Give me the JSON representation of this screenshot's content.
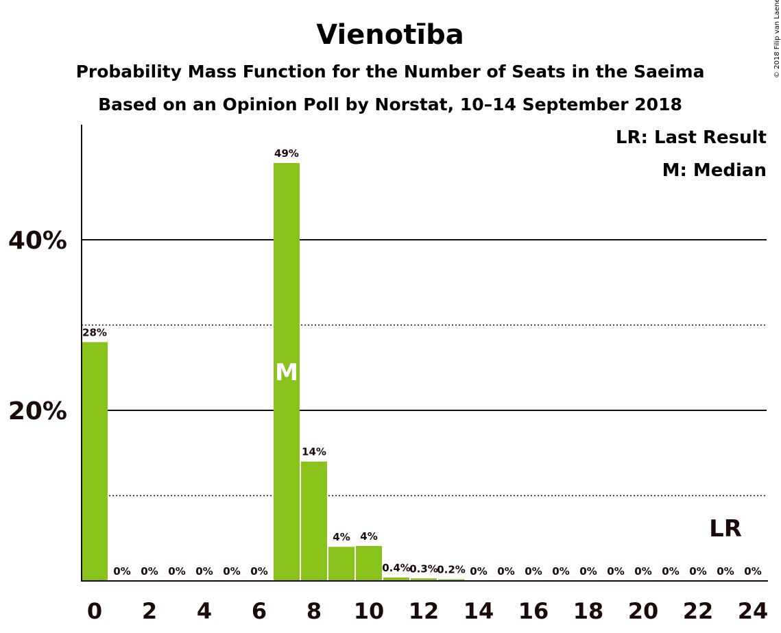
{
  "chart_data": {
    "type": "bar",
    "title": "Vienotība",
    "subtitle": "Probability Mass Function for the Number of Seats in the Saeima",
    "subtitle2": "Based on an Opinion Poll by Norstat, 10–14 September 2018",
    "copyright": "© 2018 Filip van Laenen",
    "legend": [
      "LR: Last Result",
      "M: Median"
    ],
    "legend_position": "top-right",
    "x": [
      0,
      1,
      2,
      3,
      4,
      5,
      6,
      7,
      8,
      9,
      10,
      11,
      12,
      13,
      14,
      15,
      16,
      17,
      18,
      19,
      20,
      21,
      22,
      23,
      24
    ],
    "values": [
      28,
      0,
      0,
      0,
      0,
      0,
      0,
      49,
      14,
      4,
      4.1,
      0.4,
      0.3,
      0.2,
      0,
      0,
      0,
      0,
      0,
      0,
      0,
      0,
      0,
      0,
      0
    ],
    "labels": [
      "28%",
      "0%",
      "0%",
      "0%",
      "0%",
      "0%",
      "0%",
      "49%",
      "14%",
      "4%",
      "4%",
      "0.4%",
      "0.3%",
      "0.2%",
      "0%",
      "0%",
      "0%",
      "0%",
      "0%",
      "0%",
      "0%",
      "0%",
      "0%",
      "0%",
      "0%"
    ],
    "xticks": [
      0,
      2,
      4,
      6,
      8,
      10,
      12,
      14,
      16,
      18,
      20,
      22,
      24
    ],
    "yticks": [
      {
        "value": 20,
        "label": "20%"
      },
      {
        "value": 40,
        "label": "40%"
      }
    ],
    "ylim": [
      0,
      53
    ],
    "median_seat": 7,
    "median_label": "M",
    "last_result_seat": 23,
    "last_result_label": "LR",
    "bar_color": "#8ac21c",
    "text_color": "#1a0a0a"
  }
}
